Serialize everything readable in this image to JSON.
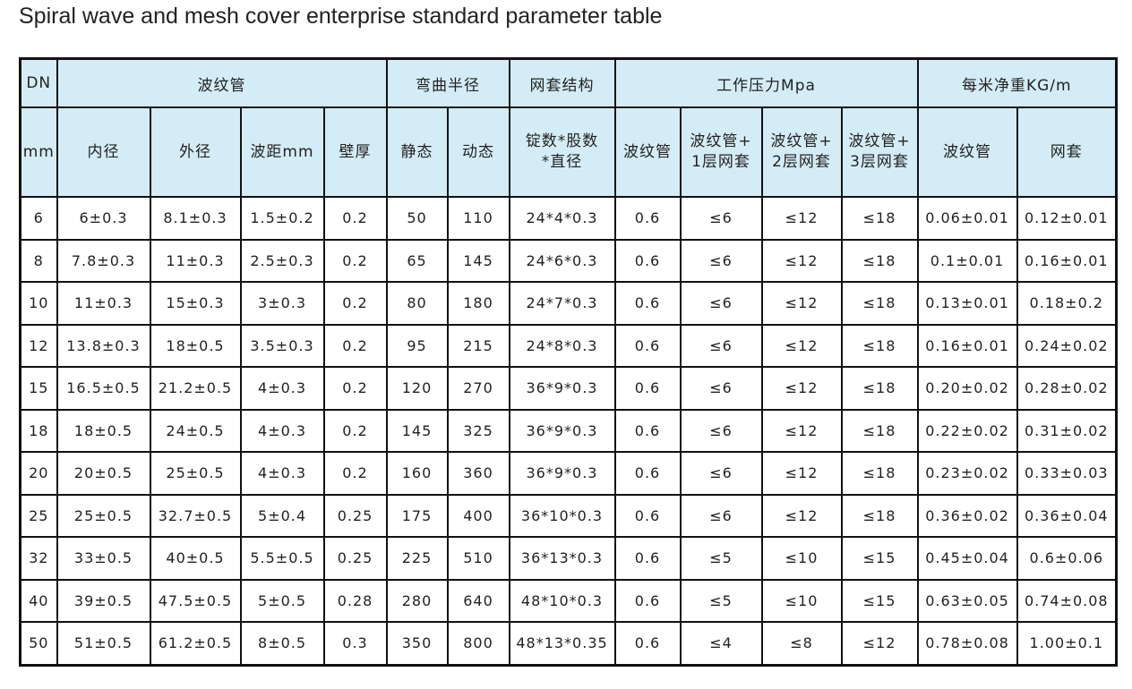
{
  "title": "Spiral wave and mesh cover enterprise standard parameter table",
  "table": {
    "header_top": [
      "DN",
      "波纹管",
      "弯曲半径",
      "网套结构",
      "工作压力Mpa",
      "每米净重KG/m"
    ],
    "header_sub": [
      "mm",
      "内径",
      "外径",
      "波距mm",
      "壁厚",
      "静态",
      "动态",
      [
        "锭数*股数",
        "*直径"
      ],
      "波纹管",
      [
        "波纹管+",
        "1层网套"
      ],
      [
        "波纹管+",
        "2层网套"
      ],
      [
        "波纹管+",
        "3层网套"
      ],
      "波纹管",
      "网套"
    ],
    "rows": [
      [
        "6",
        "6±0.3",
        "8.1±0.3",
        "1.5±0.2",
        "0.2",
        "50",
        "110",
        "24*4*0.3",
        "0.6",
        "≤6",
        "≤12",
        "≤18",
        "0.06±0.01",
        "0.12±0.01"
      ],
      [
        "8",
        "7.8±0.3",
        "11±0.3",
        "2.5±0.3",
        "0.2",
        "65",
        "145",
        "24*6*0.3",
        "0.6",
        "≤6",
        "≤12",
        "≤18",
        "0.1±0.01",
        "0.16±0.01"
      ],
      [
        "10",
        "11±0.3",
        "15±0.3",
        "3±0.3",
        "0.2",
        "80",
        "180",
        "24*7*0.3",
        "0.6",
        "≤6",
        "≤12",
        "≤18",
        "0.13±0.01",
        "0.18±0.2"
      ],
      [
        "12",
        "13.8±0.3",
        "18±0.5",
        "3.5±0.3",
        "0.2",
        "95",
        "215",
        "24*8*0.3",
        "0.6",
        "≤6",
        "≤12",
        "≤18",
        "0.16±0.01",
        "0.24±0.02"
      ],
      [
        "15",
        "16.5±0.5",
        "21.2±0.5",
        "4±0.3",
        "0.2",
        "120",
        "270",
        "36*9*0.3",
        "0.6",
        "≤6",
        "≤12",
        "≤18",
        "0.20±0.02",
        "0.28±0.02"
      ],
      [
        "18",
        "18±0.5",
        "24±0.5",
        "4±0.3",
        "0.2",
        "145",
        "325",
        "36*9*0.3",
        "0.6",
        "≤6",
        "≤12",
        "≤18",
        "0.22±0.02",
        "0.31±0.02"
      ],
      [
        "20",
        "20±0.5",
        "25±0.5",
        "4±0.3",
        "0.2",
        "160",
        "360",
        "36*9*0.3",
        "0.6",
        "≤6",
        "≤12",
        "≤18",
        "0.23±0.02",
        "0.33±0.03"
      ],
      [
        "25",
        "25±0.5",
        "32.7±0.5",
        "5±0.4",
        "0.25",
        "175",
        "400",
        "36*10*0.3",
        "0.6",
        "≤6",
        "≤12",
        "≤18",
        "0.36±0.02",
        "0.36±0.04"
      ],
      [
        "32",
        "33±0.5",
        "40±0.5",
        "5.5±0.5",
        "0.25",
        "225",
        "510",
        "36*13*0.3",
        "0.6",
        "≤5",
        "≤10",
        "≤15",
        "0.45±0.04",
        "0.6±0.06"
      ],
      [
        "40",
        "39±0.5",
        "47.5±0.5",
        "5±0.5",
        "0.28",
        "280",
        "640",
        "48*10*0.3",
        "0.6",
        "≤5",
        "≤10",
        "≤15",
        "0.63±0.05",
        "0.74±0.08"
      ],
      [
        "50",
        "51±0.5",
        "61.2±0.5",
        "8±0.5",
        "0.3",
        "350",
        "800",
        "48*13*0.35",
        "0.6",
        "≤4",
        "≤8",
        "≤12",
        "0.78±0.08",
        "1.00±0.1"
      ]
    ]
  }
}
